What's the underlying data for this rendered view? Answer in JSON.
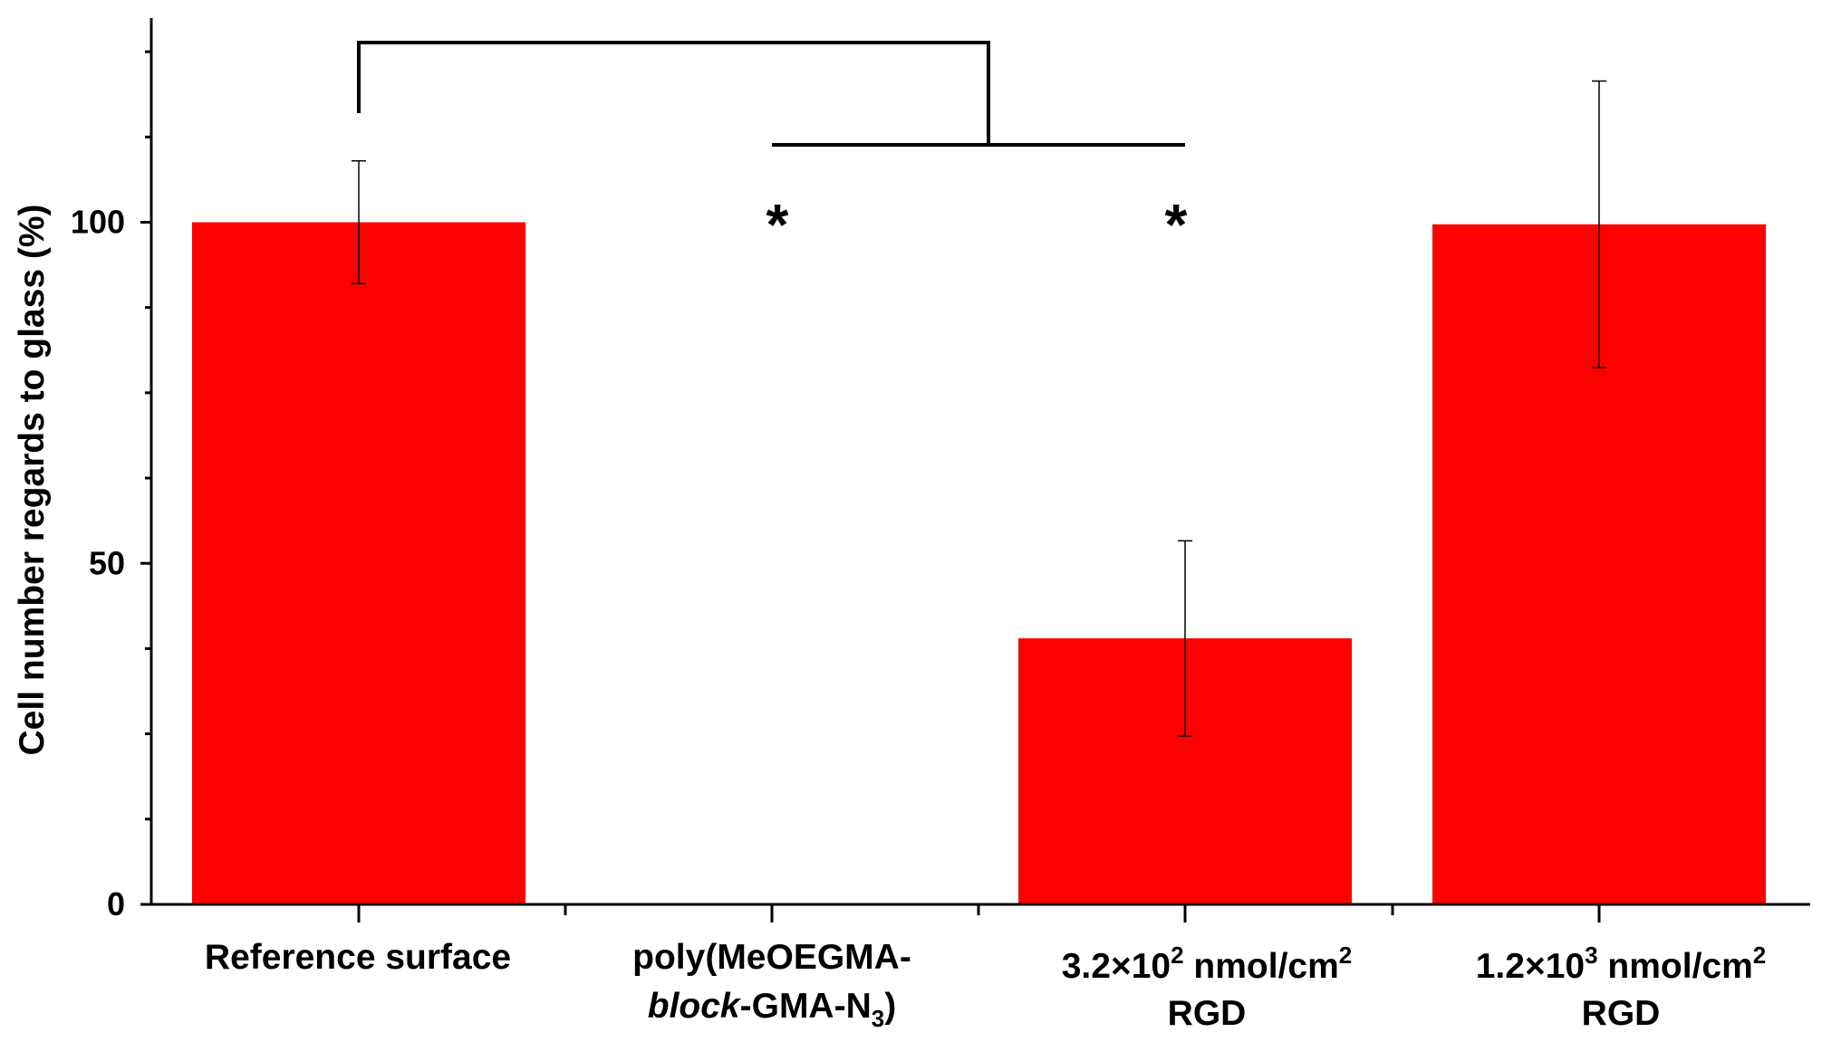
{
  "chart_data": {
    "type": "bar",
    "ylabel": "Cell number regards to glass (%)",
    "xlabel": "",
    "ylim": [
      0,
      125
    ],
    "yticks": [
      0,
      50,
      100
    ],
    "grid": false,
    "bar_color": "#ff0000",
    "categories": [
      {
        "line1": "Reference surface",
        "line2": ""
      },
      {
        "line1": "poly(MeOEGMA-",
        "line2_italic": "block",
        "line2_rest": "-GMA-N",
        "line2_sub": "3",
        "line2_end": ")"
      },
      {
        "line1_main": "3.2×10",
        "line1_sup": "2",
        "line1_mid": " nmol/cm",
        "line1_sup2": "2",
        "line2": "RGD"
      },
      {
        "line1_main": "1.2×10",
        "line1_sup": "3",
        "line1_mid": " nmol/cm",
        "line1_sup2": "2",
        "line2": "RGD"
      }
    ],
    "values": [
      100,
      0,
      39,
      99.7
    ],
    "errors": [
      9,
      0,
      14.3,
      21
    ],
    "significance": {
      "markers": [
        {
          "category_index": 1,
          "label": "*"
        },
        {
          "category_index": 2,
          "label": "*"
        }
      ]
    }
  }
}
